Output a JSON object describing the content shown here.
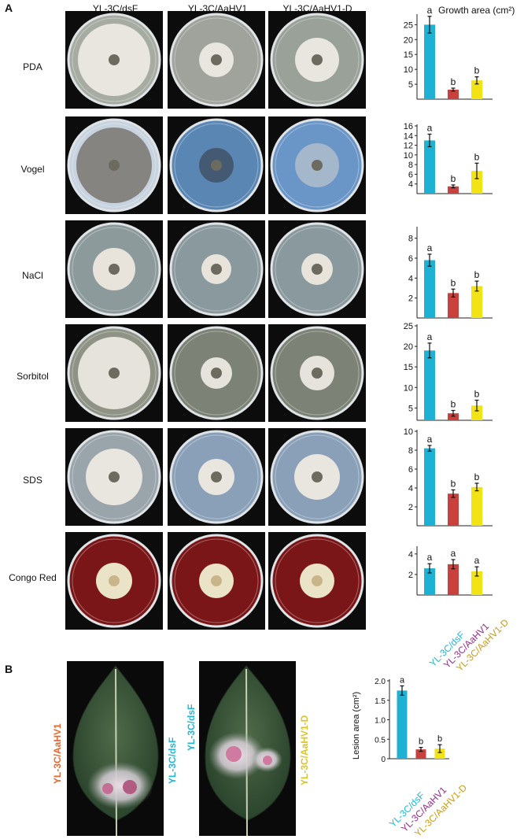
{
  "panel_a": {
    "label": "A",
    "column_headers": [
      "YL-3C/dsF",
      "YL-3C/AaHV1",
      "YL-3C/AaHV1-D"
    ],
    "chart_header": "Growth area (cm²)",
    "rows": [
      "PDA",
      "Vogel",
      "NaCl",
      "Sorbitol",
      "SDS",
      "Congo Red"
    ],
    "legend": [
      {
        "label": "YL-3C/dsF",
        "color": "#21b6d6"
      },
      {
        "label": "YL-3C/AaHV1",
        "color": "#9a2a8e"
      },
      {
        "label": "YL-3C/AaHV1-D",
        "color": "#c89c14"
      }
    ]
  },
  "panel_b": {
    "label": "B",
    "leaf_labels": [
      "YL-3C/AaHV1",
      "YL-3C/dsF",
      "YL-3C/dsF",
      "YL-3C/AaHV1-D"
    ],
    "leaf_label_colors": [
      "#e8662d",
      "#21b6d6",
      "#21b6d6",
      "#d8c52c"
    ],
    "ylabel": "Lesion area (cm²)",
    "legend": [
      {
        "label": "YL-3C/dsF",
        "color": "#21b6d6"
      },
      {
        "label": "YL-3C/AaHV1",
        "color": "#9a2a8e"
      },
      {
        "label": "YL-3C/AaHV1-D",
        "color": "#c89c14"
      }
    ]
  },
  "colors": {
    "bar1": "#1fb1d4",
    "bar2": "#c9413c",
    "bar3": "#f2e315"
  },
  "chart_data": [
    {
      "type": "bar",
      "title": "PDA",
      "categories": [
        "YL-3C/dsF",
        "YL-3C/AaHV1",
        "YL-3C/AaHV1-D"
      ],
      "values": [
        25,
        3.2,
        6.3
      ],
      "errors": [
        2.8,
        0.5,
        1.2
      ],
      "letters": [
        "a",
        "b",
        "b"
      ],
      "yticks": [
        5,
        10,
        15,
        20,
        25
      ],
      "ylim": [
        0,
        28
      ]
    },
    {
      "type": "bar",
      "title": "Vogel",
      "categories": [
        "YL-3C/dsF",
        "YL-3C/AaHV1",
        "YL-3C/AaHV1-D"
      ],
      "values": [
        13,
        3.5,
        6.7
      ],
      "errors": [
        1.3,
        0.3,
        1.6
      ],
      "letters": [
        "a",
        "b",
        "b"
      ],
      "yticks": [
        4,
        6,
        8,
        10,
        12,
        14,
        16
      ],
      "ylim": [
        2,
        16
      ]
    },
    {
      "type": "bar",
      "title": "NaCl",
      "categories": [
        "YL-3C/dsF",
        "YL-3C/AaHV1",
        "YL-3C/AaHV1-D"
      ],
      "values": [
        5.8,
        2.5,
        3.2
      ],
      "errors": [
        0.6,
        0.4,
        0.5
      ],
      "letters": [
        "a",
        "b",
        "b"
      ],
      "yticks": [
        2,
        4,
        6,
        8
      ],
      "ylim": [
        0,
        9
      ]
    },
    {
      "type": "bar",
      "title": "Sorbitol",
      "categories": [
        "YL-3C/dsF",
        "YL-3C/AaHV1",
        "YL-3C/AaHV1-D"
      ],
      "values": [
        19,
        3.7,
        5.6
      ],
      "errors": [
        1.8,
        0.7,
        1.3
      ],
      "letters": [
        "a",
        "b",
        "b"
      ],
      "yticks": [
        5,
        10,
        15,
        20,
        25
      ],
      "ylim": [
        2,
        25
      ]
    },
    {
      "type": "bar",
      "title": "SDS",
      "categories": [
        "YL-3C/dsF",
        "YL-3C/AaHV1",
        "YL-3C/AaHV1-D"
      ],
      "values": [
        8.2,
        3.4,
        4.1
      ],
      "errors": [
        0.3,
        0.4,
        0.4
      ],
      "letters": [
        "a",
        "b",
        "b"
      ],
      "yticks": [
        2,
        4,
        6,
        8,
        10
      ],
      "ylim": [
        0,
        10
      ]
    },
    {
      "type": "bar",
      "title": "Congo Red",
      "categories": [
        "YL-3C/dsF",
        "YL-3C/AaHV1",
        "YL-3C/AaHV1-D"
      ],
      "values": [
        2.6,
        3.0,
        2.3
      ],
      "errors": [
        0.45,
        0.45,
        0.45
      ],
      "letters": [
        "a",
        "a",
        "a"
      ],
      "yticks": [
        2,
        4
      ],
      "ylim": [
        0,
        4.6
      ]
    },
    {
      "type": "bar",
      "title": "",
      "ylabel": "Lesion area (cm²)",
      "categories": [
        "YL-3C/dsF",
        "YL-3C/AaHV1",
        "YL-3C/AaHV1-D"
      ],
      "values": [
        1.75,
        0.24,
        0.26
      ],
      "errors": [
        0.12,
        0.05,
        0.1
      ],
      "letters": [
        "a",
        "b",
        "b"
      ],
      "yticks": [
        0,
        0.5,
        1.0,
        1.5,
        2.0
      ],
      "yticklabels": [
        "0",
        "0.5",
        "1.0",
        "1.5",
        "2.0"
      ],
      "ylim": [
        0,
        2.0
      ]
    }
  ]
}
